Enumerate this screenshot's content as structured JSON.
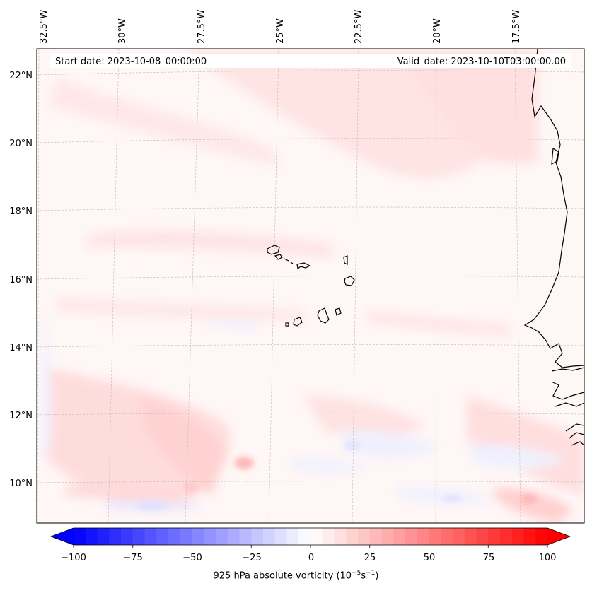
{
  "map": {
    "start_date": "Start date: 2023-10-08_00:00:00",
    "valid_date": "Valid_date: 2023-10-10T03:00:00.00",
    "lon_labels": [
      "32.5°W",
      "30°W",
      "27.5°W",
      "25°W",
      "22.5°W",
      "20°W",
      "17.5°W"
    ],
    "lat_labels": [
      "22°N",
      "20°N",
      "18°N",
      "16°N",
      "14°N",
      "12°N",
      "10°N"
    ],
    "colors": {
      "land_outline": "#000000",
      "grid": "#bbbbbb",
      "positive": "#ff0000",
      "negative": "#0000ff",
      "neutral": "#ffffff"
    }
  },
  "colorbar": {
    "ticks": [
      "−100",
      "−75",
      "−50",
      "−25",
      "0",
      "25",
      "50",
      "75",
      "100"
    ],
    "min": -100,
    "max": 100,
    "colormap": "bwr",
    "extend": "both",
    "label_text": "925 hPa absolute vorticity (10",
    "label_exp1": "−5",
    "label_mid": "s",
    "label_exp2": "−1",
    "label_end": ")"
  }
}
